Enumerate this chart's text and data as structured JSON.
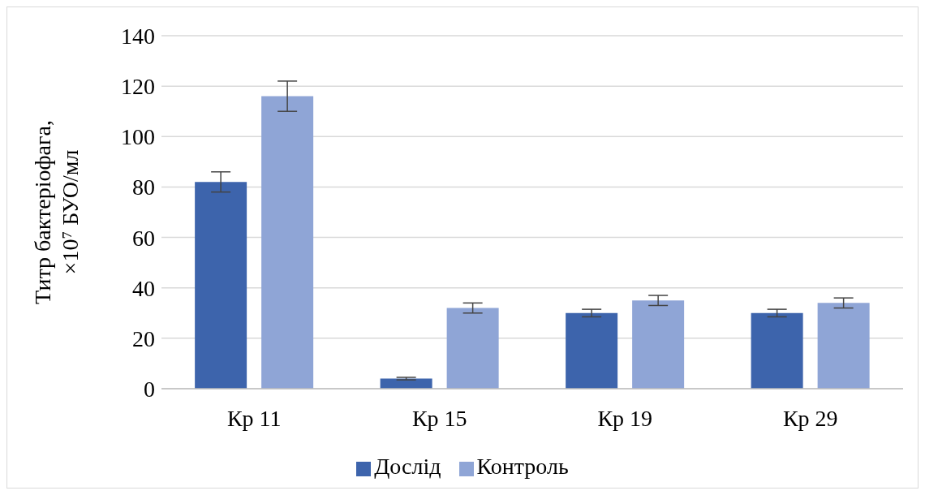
{
  "chart_data": {
    "type": "bar",
    "ylabel": "Титр бактеріофага, ×10⁷ БУО/мл",
    "categories": [
      "Кр 11",
      "Кр 15",
      "Кр 19",
      "Кр 29"
    ],
    "series": [
      {
        "name": "Дослід",
        "color": "#3d64ac",
        "values": [
          82,
          4,
          30,
          30
        ],
        "errors": [
          4,
          0.5,
          1.5,
          1.5
        ]
      },
      {
        "name": "Контроль",
        "color": "#8fa5d6",
        "values": [
          116,
          32,
          35,
          34
        ],
        "errors": [
          6,
          2,
          2,
          2
        ]
      }
    ],
    "ylim": [
      0,
      140
    ],
    "yticks": [
      0,
      20,
      40,
      60,
      80,
      100,
      120,
      140
    ],
    "grid": "y",
    "legend": "bottom"
  }
}
